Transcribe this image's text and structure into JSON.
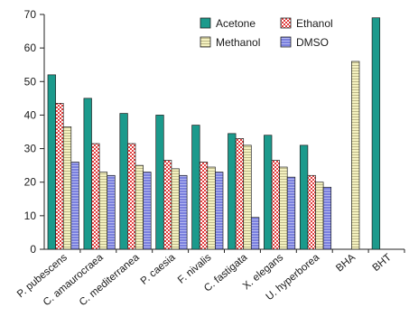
{
  "chart_data": {
    "type": "bar",
    "title": "",
    "xlabel": "",
    "ylabel": "",
    "ylim": [
      0,
      70
    ],
    "yticks": [
      0,
      10,
      20,
      30,
      40,
      50,
      60,
      70
    ],
    "grid": false,
    "legend_position": "top-center",
    "categories": [
      "P. pubescens",
      "C. amaurocraea",
      "C. mediterranea",
      "P. caesia",
      "F. nivalis",
      "C. fastigata",
      "X. elegans",
      "U. hyperborea",
      "BHA",
      "BHT"
    ],
    "series": [
      {
        "name": "Acetone",
        "color": "#1b9a8c",
        "pattern": "solid",
        "values": [
          52,
          45,
          40.5,
          40,
          37,
          34.5,
          34,
          31,
          null,
          69
        ]
      },
      {
        "name": "Ethanol",
        "color": "#e23b3b",
        "pattern": "checker",
        "values": [
          43.5,
          31.5,
          31.5,
          26.5,
          26,
          33,
          26.5,
          22,
          null,
          null
        ]
      },
      {
        "name": "Methanol",
        "color": "#f4f1bf",
        "pattern": "lines",
        "values": [
          36.5,
          23,
          25,
          24,
          24.5,
          31,
          24.5,
          20,
          56,
          null
        ]
      },
      {
        "name": "DMSO",
        "color": "#7a80de",
        "pattern": "lines",
        "values": [
          26,
          22,
          23,
          22,
          23,
          9.5,
          21.5,
          18.5,
          null,
          null
        ]
      }
    ]
  }
}
